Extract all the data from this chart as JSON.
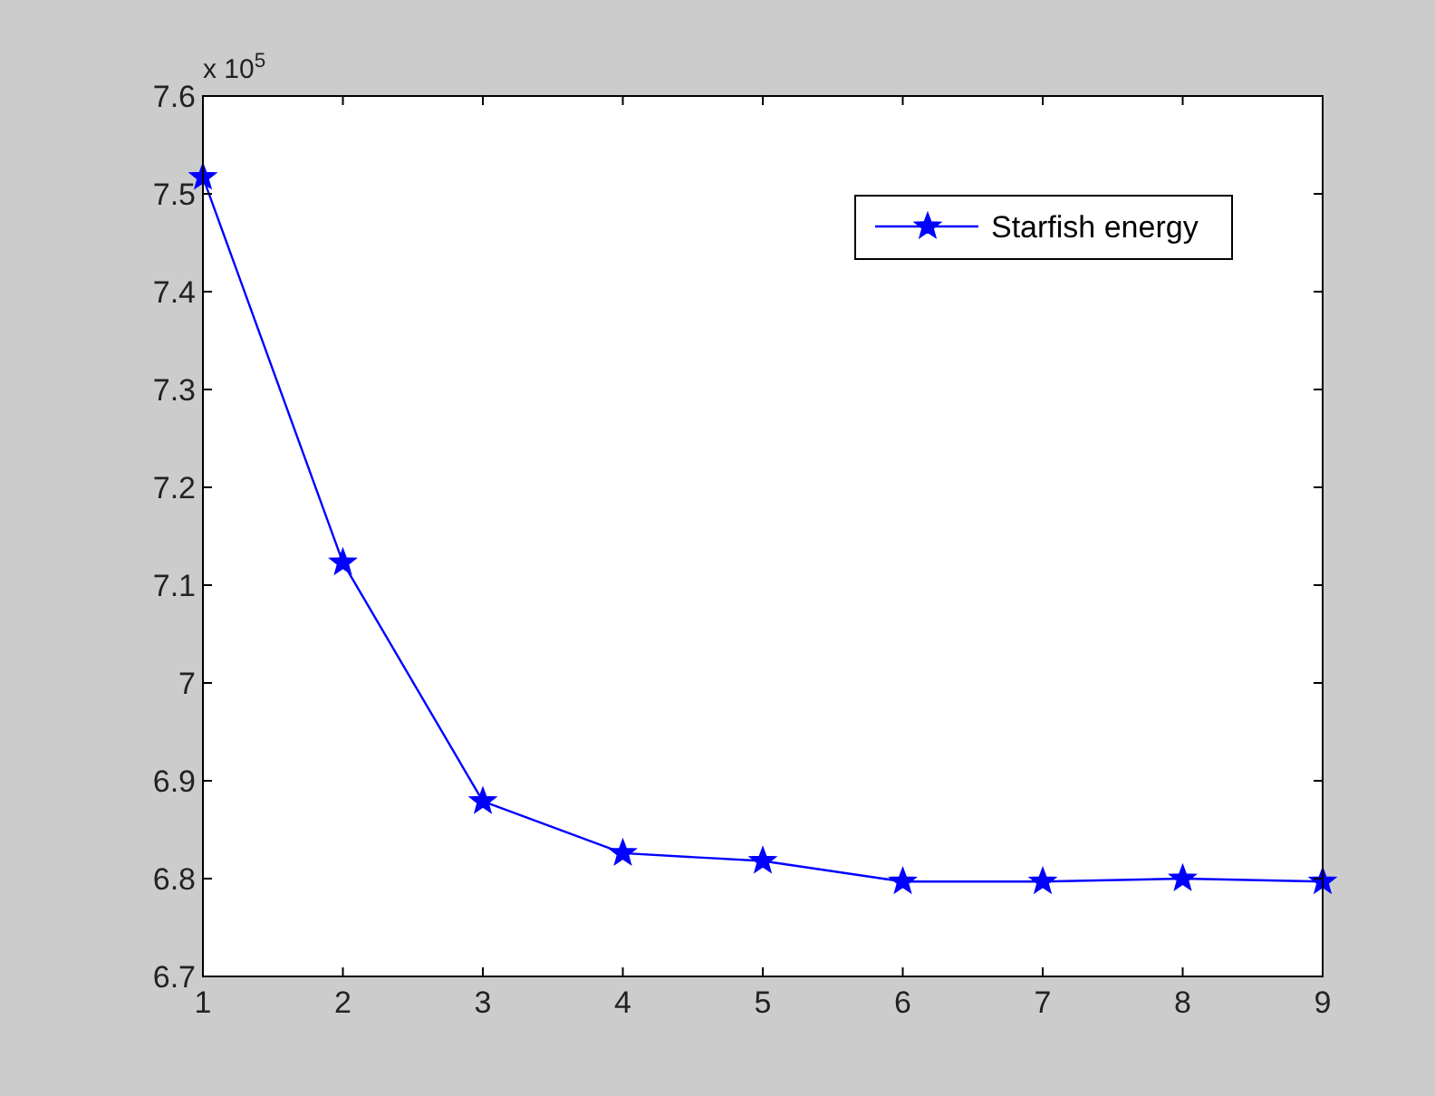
{
  "chart_data": {
    "type": "line",
    "x": [
      1,
      2,
      3,
      4,
      5,
      6,
      7,
      8,
      9
    ],
    "series": [
      {
        "name": "Starfish energy",
        "color": "#0000ff",
        "values": [
          7.517,
          7.123,
          6.879,
          6.826,
          6.818,
          6.797,
          6.797,
          6.8,
          6.797
        ]
      }
    ],
    "xlim": [
      1,
      9
    ],
    "xticks": [
      1,
      2,
      3,
      4,
      5,
      6,
      7,
      8,
      9
    ],
    "ylim": [
      6.7,
      7.6
    ],
    "yticks": [
      6.7,
      6.8,
      6.9,
      7,
      7.1,
      7.2,
      7.3,
      7.4,
      7.5,
      7.6
    ],
    "annotations": [
      "x 10$^{5}$"
    ],
    "legend": "top right",
    "marker": "star",
    "line_style": "solid",
    "grid": false
  }
}
